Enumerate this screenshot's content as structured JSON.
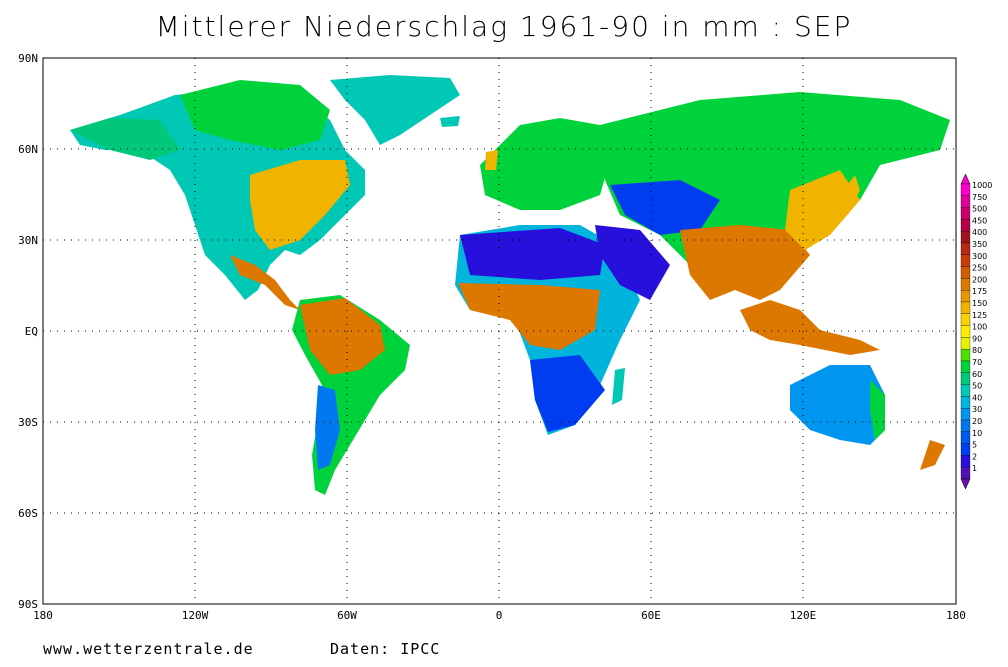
{
  "title": "Mittlerer Niederschlag 1961-90 in mm : SEP",
  "footer": {
    "website": "www.wetterzentrale.de",
    "source": "Daten: IPCC"
  },
  "axes": {
    "lat_labels": [
      "90N",
      "60N",
      "30N",
      "EQ",
      "30S",
      "60S",
      "90S"
    ],
    "lon_labels": [
      "180",
      "120W",
      "60W",
      "0",
      "60E",
      "120E",
      "180"
    ]
  },
  "colorbar": {
    "levels": [
      "1000",
      "750",
      "500",
      "450",
      "400",
      "350",
      "300",
      "250",
      "200",
      "175",
      "150",
      "125",
      "100",
      "90",
      "80",
      "70",
      "60",
      "50",
      "40",
      "30",
      "20",
      "10",
      "5",
      "2",
      "1"
    ],
    "colors": [
      "#ff00c8",
      "#e0009a",
      "#c8006e",
      "#b40046",
      "#a0141e",
      "#b42814",
      "#c83c0a",
      "#d25a00",
      "#dc7800",
      "#e69600",
      "#f0b400",
      "#fad200",
      "#ffee00",
      "#e6f000",
      "#50e000",
      "#00d23c",
      "#00c878",
      "#00c8b4",
      "#00b4dc",
      "#0096f0",
      "#0078f0",
      "#005af0",
      "#003cf0",
      "#2810dc",
      "#5014b4"
    ]
  }
}
